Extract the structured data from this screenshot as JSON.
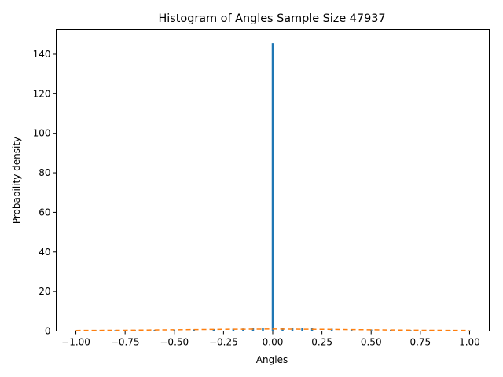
{
  "chart_data": {
    "type": "bar",
    "title": "Histogram of Angles Sample Size 47937",
    "xlabel": "Angles",
    "ylabel": "Probability density",
    "xlim": [
      -1.1,
      1.1
    ],
    "ylim": [
      0,
      152.5
    ],
    "xticks": [
      -1.0,
      -0.75,
      -0.5,
      -0.25,
      0.0,
      0.25,
      0.5,
      0.75,
      1.0
    ],
    "xtick_labels": [
      "−1.00",
      "−0.75",
      "−0.50",
      "−0.25",
      "0.00",
      "0.25",
      "0.50",
      "0.75",
      "1.00"
    ],
    "yticks": [
      0,
      20,
      40,
      60,
      80,
      100,
      120,
      140
    ],
    "ytick_labels": [
      "0",
      "20",
      "40",
      "60",
      "80",
      "100",
      "120",
      "140"
    ],
    "grid": false,
    "series": [
      {
        "kind": "histogram",
        "color": "#1f77b4",
        "bin_width": 0.01,
        "bins": [
          {
            "x": -1.0,
            "value": 0.3
          },
          {
            "x": -0.9,
            "value": 0.4
          },
          {
            "x": -0.8,
            "value": 0.45
          },
          {
            "x": -0.7,
            "value": 0.5
          },
          {
            "x": -0.6,
            "value": 0.6
          },
          {
            "x": -0.5,
            "value": 0.7
          },
          {
            "x": -0.4,
            "value": 0.8
          },
          {
            "x": -0.3,
            "value": 1.0
          },
          {
            "x": -0.2,
            "value": 1.2
          },
          {
            "x": -0.15,
            "value": 1.3
          },
          {
            "x": -0.1,
            "value": 1.4
          },
          {
            "x": -0.05,
            "value": 1.5
          },
          {
            "x": 0.0,
            "value": 145.5
          },
          {
            "x": 0.05,
            "value": 1.5
          },
          {
            "x": 0.1,
            "value": 1.6
          },
          {
            "x": 0.15,
            "value": 1.7
          },
          {
            "x": 0.2,
            "value": 1.5
          },
          {
            "x": 0.3,
            "value": 1.2
          },
          {
            "x": 0.4,
            "value": 1.0
          },
          {
            "x": 0.5,
            "value": 0.8
          },
          {
            "x": 0.6,
            "value": 0.6
          },
          {
            "x": 0.7,
            "value": 0.5
          },
          {
            "x": 0.8,
            "value": 0.45
          },
          {
            "x": 0.9,
            "value": 0.4
          },
          {
            "x": 1.0,
            "value": 0.3
          }
        ]
      },
      {
        "kind": "line",
        "style": "dashed",
        "color": "#ff7f0e",
        "x": [
          -1.0,
          -0.75,
          -0.5,
          -0.25,
          0.0,
          0.25,
          0.5,
          0.75,
          1.0
        ],
        "y": [
          0.32,
          0.42,
          0.64,
          0.9,
          1.05,
          0.9,
          0.64,
          0.42,
          0.32
        ]
      }
    ]
  }
}
